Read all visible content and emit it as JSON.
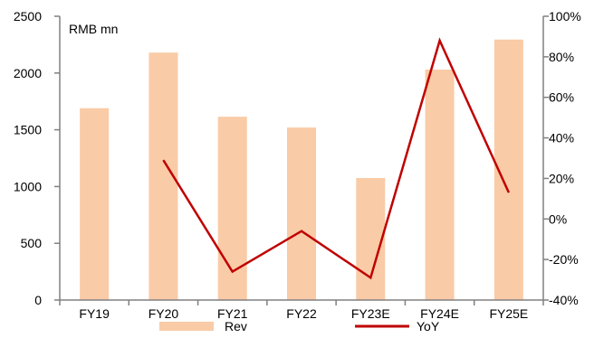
{
  "chart_data": {
    "type": "bar",
    "categories": [
      "FY19",
      "FY20",
      "FY21",
      "FY22",
      "FY23E",
      "FY24E",
      "FY25E"
    ],
    "series": [
      {
        "name": "Rev",
        "type": "bar",
        "axis": "left",
        "color": "#F9CBA7",
        "values": [
          1690,
          2180,
          1615,
          1520,
          1075,
          2030,
          2295
        ]
      },
      {
        "name": "YoY",
        "type": "line",
        "axis": "right",
        "color": "#C00000",
        "values": [
          null,
          29,
          -26,
          -6,
          -29,
          88,
          13
        ]
      }
    ],
    "unit_label": "RMB mn",
    "y_left": {
      "ylim": [
        0,
        2500
      ],
      "ticks": [
        0,
        500,
        1000,
        1500,
        2000,
        2500
      ],
      "tick_labels": [
        "0",
        "500",
        "1000",
        "1500",
        "2000",
        "2500"
      ]
    },
    "y_right": {
      "ylim": [
        -40,
        100
      ],
      "ticks": [
        -40,
        -20,
        0,
        20,
        40,
        60,
        80,
        100
      ],
      "tick_labels": [
        "-40%",
        "-20%",
        "0%",
        "20%",
        "40%",
        "60%",
        "80%",
        "100%"
      ]
    },
    "legend": {
      "position": "bottom",
      "labels": [
        "Rev",
        "YoY"
      ]
    },
    "grid": false
  }
}
